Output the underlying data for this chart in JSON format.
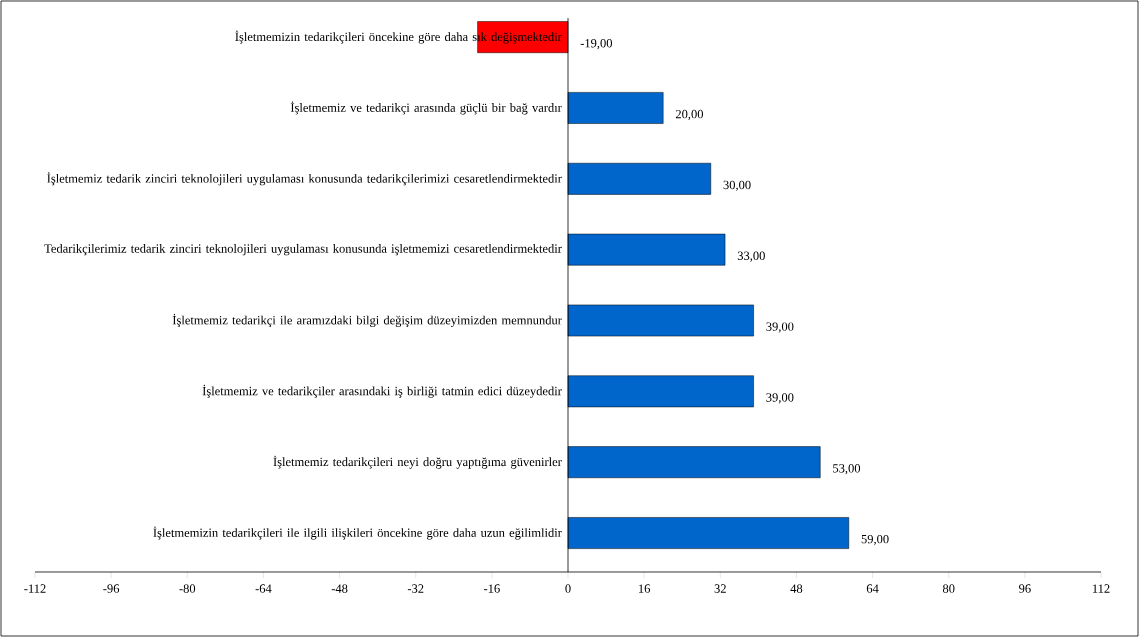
{
  "chart_data": {
    "type": "bar",
    "orientation": "horizontal",
    "categories": [
      "İşletmemizin tedarikçileri öncekine göre daha sık değişmektedir",
      "İşletmemiz ve tedarikçi arasında güçlü bir bağ vardır",
      "İşletmemiz tedarik zinciri teknolojileri uygulaması konusunda tedarikçilerimizi cesaretlendirmektedir",
      "Tedarikçilerimiz tedarik zinciri teknolojileri uygulaması konusunda işletmemizi cesaretlendirmektedir",
      "İşletmemiz tedarikçi ile aramızdaki bilgi değişim düzeyimizden memnundur",
      "İşletmemiz ve tedarikçiler arasındaki iş birliği tatmin edici düzeydedir",
      "İşletmemiz tedarikçileri neyi doğru yaptığıma güvenirler",
      "İşletmemizin tedarikçileri ile ilgili ilişkileri öncekine göre daha uzun eğilimlidir"
    ],
    "values": [
      -19,
      20,
      30,
      33,
      39,
      39,
      53,
      59
    ],
    "colors": [
      "#ff0000",
      "#0066cc",
      "#0066cc",
      "#0066cc",
      "#0066cc",
      "#0066cc",
      "#0066cc",
      "#0066cc"
    ],
    "value_labels": [
      "-19,00",
      "20,00",
      "30,00",
      "33,00",
      "39,00",
      "39,00",
      "53,00",
      "59,00"
    ],
    "xlim": [
      -112,
      112
    ],
    "xticks": [
      -112,
      -96,
      -80,
      -64,
      -48,
      -32,
      -16,
      0,
      16,
      32,
      48,
      64,
      80,
      96,
      112
    ]
  }
}
